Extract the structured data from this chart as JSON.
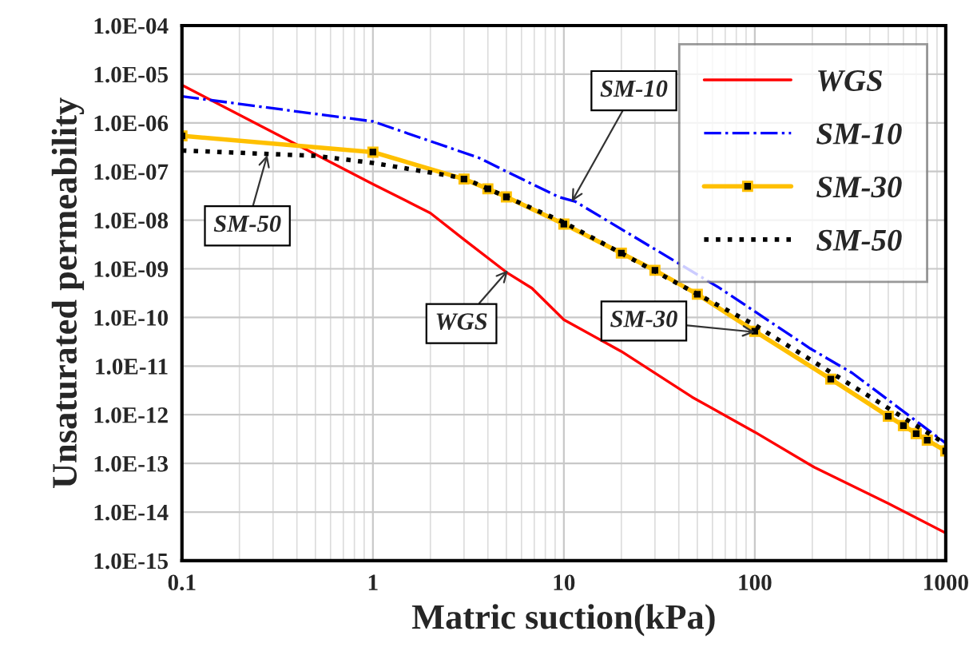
{
  "chart_data": {
    "type": "line",
    "xlabel": "Matric suction(kPa)",
    "ylabel": "Unsaturated permeability",
    "log": "xy",
    "grid": true,
    "legend": "top right",
    "xlim": [
      0.1,
      1000
    ],
    "xticks": [
      0.1,
      1,
      10,
      100,
      1000
    ],
    "ylim": [
      1e-15,
      0.0001
    ],
    "yticks": [
      {
        "value": 1e-15,
        "label": "1.0E-15"
      },
      {
        "value": 1e-14,
        "label": "1.0E-14"
      },
      {
        "value": 1e-13,
        "label": "1.0E-13"
      },
      {
        "value": 1e-12,
        "label": "1.0E-12"
      },
      {
        "value": 1e-11,
        "label": "1.0E-11"
      },
      {
        "value": 1e-10,
        "label": "1.0E-10"
      },
      {
        "value": 1e-09,
        "label": "1.0E-09"
      },
      {
        "value": 1e-08,
        "label": "1.0E-08"
      },
      {
        "value": 1e-07,
        "label": "1.0E-07"
      },
      {
        "value": 1e-06,
        "label": "1.0E-06"
      },
      {
        "value": 1e-05,
        "label": "1.0E-05"
      },
      {
        "value": 0.0001,
        "label": "1.0E-04"
      }
    ],
    "series": [
      {
        "name": "WGS",
        "color": "#ff0000",
        "line_style": "solid",
        "marker": "none",
        "x": [
          0.1,
          1,
          2,
          3,
          5,
          6.8,
          10,
          20,
          47,
          100,
          205,
          500,
          1000
        ],
        "values": [
          6e-06,
          5.5e-08,
          1.4e-08,
          4e-09,
          8.5e-10,
          4e-10,
          9e-11,
          2e-11,
          2.3e-12,
          4.4e-13,
          8.3e-14,
          1.5e-14,
          3.7e-15
        ]
      },
      {
        "name": "SM-10",
        "color": "#0000ff",
        "line_style": "dashdot",
        "marker": "none",
        "x": [
          0.1,
          1,
          3.6,
          5,
          9.4,
          11.5,
          65,
          195,
          324,
          1000
        ],
        "values": [
          3.5e-06,
          1.07e-06,
          1.9e-07,
          1e-07,
          3e-08,
          2.4e-08,
          4.1e-10,
          2.3e-11,
          7.2e-12,
          2.6e-13
        ]
      },
      {
        "name": "SM-30",
        "color": "#ffc000",
        "line_style": "solid",
        "marker": "square",
        "x": [
          0.1,
          1,
          3,
          4,
          5,
          10,
          20,
          30,
          50,
          100,
          250,
          500,
          600,
          700,
          800,
          1000
        ],
        "values": [
          5.4e-07,
          2.5e-07,
          7e-08,
          4.4e-08,
          3e-08,
          8.3e-09,
          2.1e-09,
          9.3e-10,
          3e-10,
          5.2e-11,
          5.4e-12,
          9.3e-13,
          6e-13,
          4.1e-13,
          3e-13,
          1.8e-13
        ]
      },
      {
        "name": "SM-50",
        "color": "#000000",
        "line_style": "dotted",
        "marker": "none",
        "x": [
          0.1,
          0.5,
          1,
          3,
          10,
          100,
          1000
        ],
        "values": [
          2.7e-07,
          2.1e-07,
          1.5e-07,
          7.3e-08,
          9e-09,
          7e-11,
          2.5e-13
        ]
      }
    ],
    "annotations": [
      {
        "text": "SM-50",
        "x": 0.28,
        "y": 2.2e-07
      },
      {
        "text": "WGS",
        "x": 5.1,
        "y": 9.3e-10
      },
      {
        "text": "SM-10",
        "x": 11,
        "y": 2.4e-08
      },
      {
        "text": "SM-30",
        "x": 100,
        "y": 5e-11
      }
    ]
  }
}
